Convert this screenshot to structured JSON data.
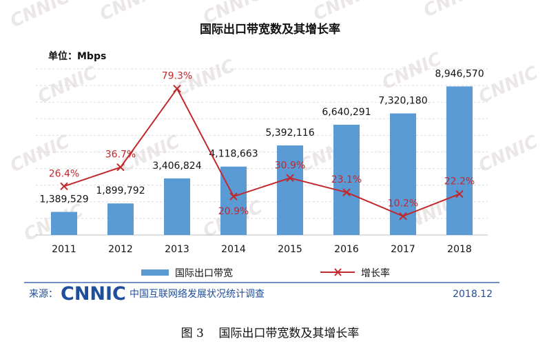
{
  "watermark_text": "CNNIC",
  "source": {
    "prefix": "来源：",
    "brand": "CNNIC",
    "org": "中国互联网络发展状况统计调查",
    "date": "2018.12"
  },
  "figure_caption": "图 3    国际出口带宽数及其增长率",
  "colors": {
    "bar": "#5b9bd5",
    "line": "#c0282d",
    "source_text": "#1f4e9c"
  },
  "chart_data": {
    "type": "bar",
    "title": "国际出口带宽数及其增长率",
    "unit_label": "单位：Mbps",
    "categories": [
      "2011",
      "2012",
      "2013",
      "2014",
      "2015",
      "2016",
      "2017",
      "2018"
    ],
    "series": [
      {
        "name": "国际出口带宽",
        "type": "bar",
        "values": [
          1389529,
          1899792,
          3406824,
          4118663,
          5392116,
          6640291,
          7320180,
          8946570
        ],
        "labels": [
          "1,389,529",
          "1,899,792",
          "3,406,824",
          "4,118,663",
          "5,392,116",
          "6,640,291",
          "7,320,180",
          "8,946,570"
        ]
      },
      {
        "name": "增长率",
        "type": "line",
        "values": [
          26.4,
          36.7,
          79.3,
          20.9,
          30.9,
          23.1,
          10.2,
          22.2
        ],
        "labels": [
          "26.4%",
          "36.7%",
          "79.3%",
          "20.9%",
          "30.9%",
          "23.1%",
          "10.2%",
          "22.2%"
        ]
      }
    ],
    "ylim_bar": [
      0,
      10000000
    ],
    "ylim_line": [
      0,
      90
    ],
    "grid": true,
    "legend": "bottom"
  }
}
